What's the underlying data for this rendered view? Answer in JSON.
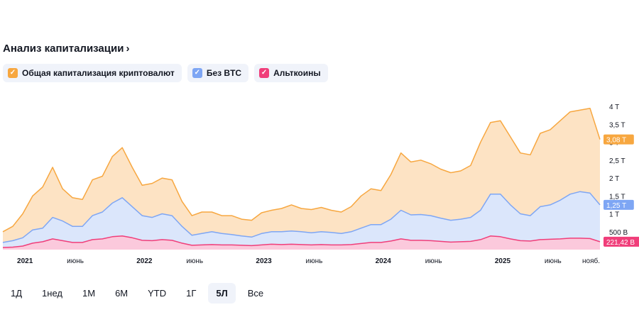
{
  "header": {
    "title": "Анализ капитализации",
    "chevron": "›"
  },
  "legend": [
    {
      "label": "Общая капитализация криптовалют",
      "color": "#f7a740",
      "check": "✓"
    },
    {
      "label": "Без BTC",
      "color": "#7ea6f4",
      "check": "✓"
    },
    {
      "label": "Альткоины",
      "color": "#f03e7a",
      "check": "✓"
    }
  ],
  "ranges": [
    {
      "label": "1Д",
      "active": false
    },
    {
      "label": "1нед",
      "active": false
    },
    {
      "label": "1М",
      "active": false
    },
    {
      "label": "6М",
      "active": false
    },
    {
      "label": "YTD",
      "active": false
    },
    {
      "label": "1Г",
      "active": false
    },
    {
      "label": "5Л",
      "active": true
    },
    {
      "label": "Все",
      "active": false
    }
  ],
  "chart_data": {
    "type": "area",
    "x": [
      "2020-11",
      "2020-12",
      "2021-01",
      "2021-02",
      "2021-03",
      "2021-04",
      "2021-05",
      "2021-06",
      "2021-07",
      "2021-08",
      "2021-09",
      "2021-10",
      "2021-11",
      "2021-12",
      "2022-01",
      "2022-02",
      "2022-03",
      "2022-04",
      "2022-05",
      "2022-06",
      "2022-07",
      "2022-08",
      "2022-09",
      "2022-10",
      "2022-11",
      "2022-12",
      "2023-01",
      "2023-02",
      "2023-03",
      "2023-04",
      "2023-05",
      "2023-06",
      "2023-07",
      "2023-08",
      "2023-09",
      "2023-10",
      "2023-11",
      "2023-12",
      "2024-01",
      "2024-02",
      "2024-03",
      "2024-04",
      "2024-05",
      "2024-06",
      "2024-07",
      "2024-08",
      "2024-09",
      "2024-10",
      "2024-11",
      "2024-12",
      "2025-01",
      "2025-02",
      "2025-03",
      "2025-04",
      "2025-05",
      "2025-06",
      "2025-07",
      "2025-08",
      "2025-09",
      "2025-10",
      "2025-11"
    ],
    "series": [
      {
        "name": "Общая капитализация криптовалют",
        "color": "#f7a740",
        "values": [
          0.5,
          0.65,
          1.0,
          1.5,
          1.75,
          2.3,
          1.7,
          1.45,
          1.4,
          1.95,
          2.05,
          2.6,
          2.85,
          2.3,
          1.8,
          1.85,
          2.0,
          1.95,
          1.35,
          0.95,
          1.05,
          1.05,
          0.95,
          0.95,
          0.85,
          0.82,
          1.03,
          1.1,
          1.15,
          1.25,
          1.15,
          1.12,
          1.18,
          1.1,
          1.05,
          1.2,
          1.5,
          1.7,
          1.65,
          2.1,
          2.7,
          2.45,
          2.5,
          2.4,
          2.25,
          2.15,
          2.2,
          2.35,
          3.0,
          3.55,
          3.6,
          3.15,
          2.7,
          2.65,
          3.25,
          3.35,
          3.6,
          3.85,
          3.9,
          3.95,
          3.08
        ]
      },
      {
        "name": "Без BTC",
        "color": "#7ea6f4",
        "values": [
          0.2,
          0.25,
          0.33,
          0.55,
          0.6,
          0.9,
          0.8,
          0.65,
          0.65,
          0.95,
          1.05,
          1.3,
          1.45,
          1.2,
          0.95,
          0.9,
          1.0,
          0.95,
          0.65,
          0.4,
          0.45,
          0.5,
          0.45,
          0.42,
          0.38,
          0.35,
          0.45,
          0.5,
          0.5,
          0.52,
          0.5,
          0.47,
          0.5,
          0.48,
          0.45,
          0.5,
          0.6,
          0.7,
          0.7,
          0.85,
          1.1,
          0.97,
          0.98,
          0.95,
          0.88,
          0.82,
          0.85,
          0.9,
          1.1,
          1.55,
          1.55,
          1.25,
          1.0,
          0.95,
          1.2,
          1.25,
          1.38,
          1.55,
          1.62,
          1.58,
          1.25
        ]
      },
      {
        "name": "Альткоины",
        "color": "#f03e7a",
        "values": [
          0.06,
          0.07,
          0.1,
          0.18,
          0.22,
          0.3,
          0.25,
          0.2,
          0.2,
          0.28,
          0.3,
          0.36,
          0.38,
          0.33,
          0.26,
          0.25,
          0.28,
          0.26,
          0.18,
          0.12,
          0.13,
          0.14,
          0.13,
          0.13,
          0.12,
          0.11,
          0.13,
          0.15,
          0.14,
          0.15,
          0.14,
          0.13,
          0.14,
          0.13,
          0.13,
          0.14,
          0.17,
          0.2,
          0.2,
          0.24,
          0.3,
          0.26,
          0.26,
          0.25,
          0.23,
          0.21,
          0.22,
          0.23,
          0.28,
          0.38,
          0.36,
          0.3,
          0.25,
          0.24,
          0.28,
          0.29,
          0.3,
          0.32,
          0.32,
          0.31,
          0.22
        ]
      }
    ],
    "last_values": [
      "3,08 T",
      "1,25 T",
      "221,42 B"
    ],
    "y_ticks": [
      {
        "v": 0.5,
        "label": "500 B"
      },
      {
        "v": 1.0,
        "label": "1 T"
      },
      {
        "v": 1.5,
        "label": "1,5 T"
      },
      {
        "v": 2.0,
        "label": "2 T"
      },
      {
        "v": 2.5,
        "label": "2,5 T"
      },
      {
        "v": 3.0,
        "label": "3 T"
      },
      {
        "v": 3.5,
        "label": "3,5 T"
      },
      {
        "v": 4.0,
        "label": "4 T"
      }
    ],
    "x_ticks": [
      {
        "x": "2021-01",
        "label": "2021",
        "year": true
      },
      {
        "x": "2021-06",
        "label": "июнь",
        "year": false
      },
      {
        "x": "2022-01",
        "label": "2022",
        "year": true
      },
      {
        "x": "2022-06",
        "label": "июнь",
        "year": false
      },
      {
        "x": "2023-01",
        "label": "2023",
        "year": true
      },
      {
        "x": "2023-06",
        "label": "июнь",
        "year": false
      },
      {
        "x": "2024-01",
        "label": "2024",
        "year": true
      },
      {
        "x": "2024-06",
        "label": "июнь",
        "year": false
      },
      {
        "x": "2025-01",
        "label": "2025",
        "year": true
      },
      {
        "x": "2025-06",
        "label": "июнь",
        "year": false
      },
      {
        "x": "2025-11",
        "label": "нояб.",
        "year": false
      }
    ],
    "ylim": [
      0,
      4.3
    ],
    "grid": false,
    "legend": "top-left"
  }
}
